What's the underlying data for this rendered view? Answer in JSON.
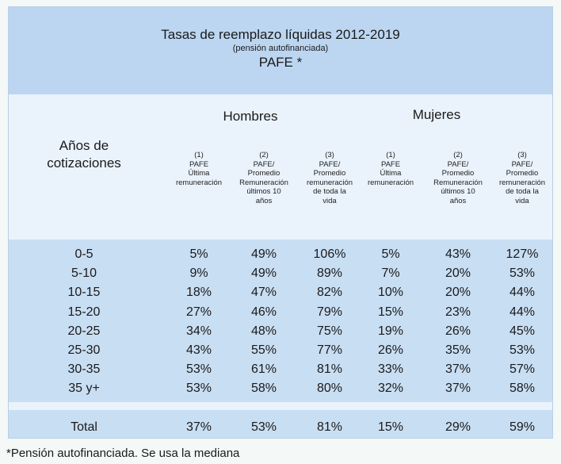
{
  "title": "Tasas de reemplazo líquidas 2012-2019",
  "subtitle": "(pensión autofinanciada)",
  "pafe_title": "PAFE *",
  "row_header": [
    "Años de",
    "cotizaciones"
  ],
  "groups": {
    "hombres": "Hombres",
    "mujeres": "Mujeres"
  },
  "columns": [
    {
      "num": "(1)",
      "lines": [
        "PAFE",
        "Última",
        "remuneración"
      ]
    },
    {
      "num": "(2)",
      "lines": [
        "PAFE/",
        "Promedio",
        "Remuneración",
        "últimos 10",
        "años"
      ]
    },
    {
      "num": "(3)",
      "lines": [
        "PAFE/",
        "Promedio",
        "remuneración",
        "de toda la",
        "vida"
      ]
    },
    {
      "num": "(1)",
      "lines": [
        "PAFE",
        "Última",
        "remuneración"
      ]
    },
    {
      "num": "(2)",
      "lines": [
        "PAFE/",
        "Promedio",
        "Remuneración",
        "últimos 10",
        "años"
      ]
    },
    {
      "num": "(3)",
      "lines": [
        "PAFE/",
        "Promedio",
        "remuneración",
        "de toda la",
        "vida"
      ]
    }
  ],
  "rows": [
    {
      "label": "0-5",
      "values": [
        "5%",
        "49%",
        "106%",
        "5%",
        "43%",
        "127%"
      ]
    },
    {
      "label": "5-10",
      "values": [
        "9%",
        "49%",
        "89%",
        "7%",
        "20%",
        "53%"
      ]
    },
    {
      "label": "10-15",
      "values": [
        "18%",
        "47%",
        "82%",
        "10%",
        "20%",
        "44%"
      ]
    },
    {
      "label": "15-20",
      "values": [
        "27%",
        "46%",
        "79%",
        "15%",
        "23%",
        "44%"
      ]
    },
    {
      "label": "20-25",
      "values": [
        "34%",
        "48%",
        "75%",
        "19%",
        "26%",
        "45%"
      ]
    },
    {
      "label": "25-30",
      "values": [
        "43%",
        "55%",
        "77%",
        "26%",
        "35%",
        "53%"
      ]
    },
    {
      "label": "30-35",
      "values": [
        "53%",
        "61%",
        "81%",
        "33%",
        "37%",
        "57%"
      ]
    },
    {
      "label": "35 y+",
      "values": [
        "53%",
        "58%",
        "80%",
        "32%",
        "37%",
        "58%"
      ]
    }
  ],
  "total": {
    "label": "Total",
    "values": [
      "37%",
      "53%",
      "81%",
      "15%",
      "29%",
      "59%"
    ]
  },
  "footnote": "*Pensión autofinanciada. Se usa la mediana"
}
